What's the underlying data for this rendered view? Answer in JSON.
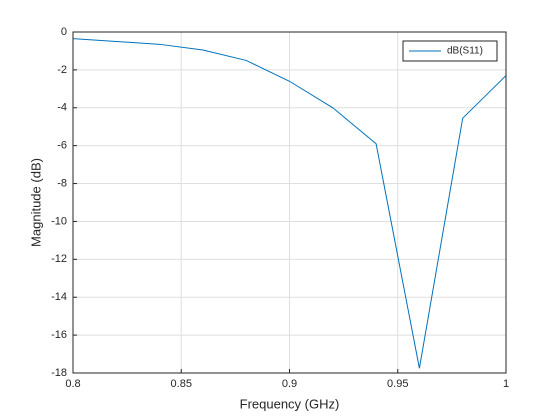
{
  "chart_data": {
    "type": "line",
    "x_label": "Frequency (GHz)",
    "y_label": "Magnitude (dB)",
    "x": [
      0.8,
      0.82,
      0.84,
      0.86,
      0.88,
      0.9,
      0.92,
      0.94,
      0.96,
      0.98,
      1.0
    ],
    "series": [
      {
        "name": "dB(S11)",
        "color": "#0072bd",
        "values": [
          -0.35,
          -0.5,
          -0.65,
          -0.95,
          -1.5,
          -2.6,
          -4.0,
          -5.9,
          -17.75,
          -4.55,
          -2.3
        ]
      }
    ],
    "xlim": [
      0.8,
      1.0
    ],
    "xticks": [
      0.8,
      0.85,
      0.9,
      0.95,
      1
    ],
    "ylim": [
      -18,
      0
    ],
    "yticks": [
      0,
      -2,
      -4,
      -6,
      -8,
      -10,
      -12,
      -14,
      -16,
      -18
    ],
    "grid": true,
    "legend": "top-right"
  }
}
